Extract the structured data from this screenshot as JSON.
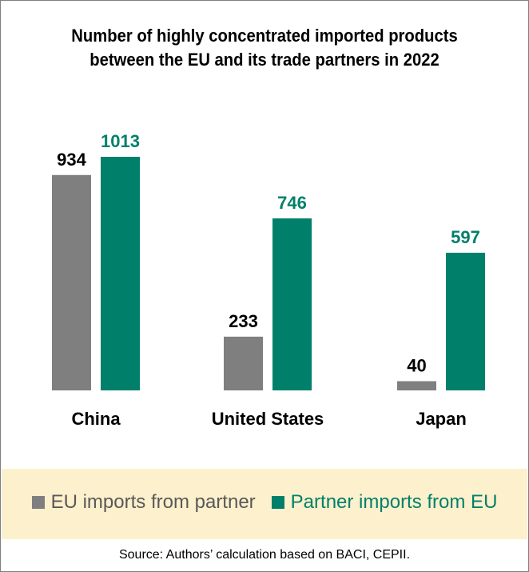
{
  "chart_data": {
    "type": "bar",
    "title_lines": [
      "Number of highly concentrated imported products",
      "between the EU and its trade partners in 2022"
    ],
    "categories": [
      "China",
      "United States",
      "Japan"
    ],
    "series": [
      {
        "name": "EU imports from partner",
        "values": [
          934,
          233,
          40
        ],
        "color": "#7f7f7f",
        "label_color": "#000000"
      },
      {
        "name": "Partner imports from EU",
        "values": [
          1013,
          746,
          597
        ],
        "color": "#00806a",
        "label_color": "#00806a"
      }
    ],
    "ylim": [
      0,
      1100
    ],
    "grid": false,
    "legend_position": "bottom"
  },
  "source": "Source: Authors’ calculation based on BACI, CEPII."
}
